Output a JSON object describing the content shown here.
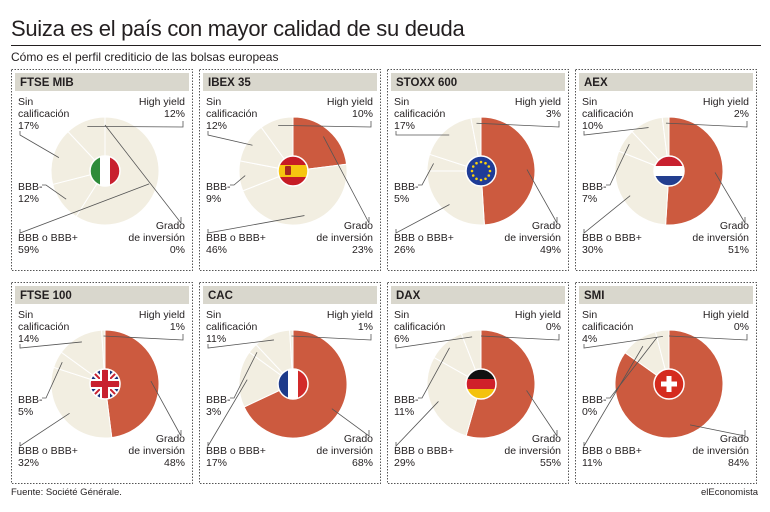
{
  "title": "Suiza es el país con mayor calidad de su deuda",
  "subtitle": "Cómo es el perfil crediticio de las bolsas europeas",
  "source": "Fuente: Société Générale.",
  "brand": "elEconomista",
  "colors": {
    "inv": "#cc5a3f",
    "other": "#f2eee1",
    "header": "#d9d7cd",
    "border": "#555555",
    "line": "#555555",
    "divider": "#ffffff"
  },
  "chart_data": [
    {
      "type": "pie",
      "title": "FTSE MIB",
      "flag": "italy-flag-icon",
      "labels": {
        "sin": [
          "Sin",
          "calificación"
        ],
        "hy": [
          "High yield"
        ],
        "bbbm": [
          "BBB-"
        ],
        "bbb": [
          "BBB o BBB+"
        ],
        "inv": [
          "Grado",
          "de inversión"
        ]
      },
      "values": {
        "inv": 0,
        "bbb": 59,
        "bbbm": 12,
        "sin": 17,
        "hy": 12
      },
      "display": {
        "inv": "0%",
        "bbb": "59%",
        "bbbm": "12%",
        "sin": "17%",
        "hy": "12%"
      }
    },
    {
      "type": "pie",
      "title": "IBEX 35",
      "flag": "spain-flag-icon",
      "labels": {
        "sin": [
          "Sin",
          "calificación"
        ],
        "hy": [
          "High yield"
        ],
        "bbbm": [
          "BBB-"
        ],
        "bbb": [
          "BBB o BBB+"
        ],
        "inv": [
          "Grado",
          "de inversión"
        ]
      },
      "values": {
        "inv": 23,
        "bbb": 46,
        "bbbm": 9,
        "sin": 12,
        "hy": 10
      },
      "display": {
        "inv": "23%",
        "bbb": "46%",
        "bbbm": "9%",
        "sin": "12%",
        "hy": "10%"
      }
    },
    {
      "type": "pie",
      "title": "STOXX 600",
      "flag": "eu-flag-icon",
      "labels": {
        "sin": [
          "Sin",
          "calificación"
        ],
        "hy": [
          "High yield"
        ],
        "bbbm": [
          "BBB-"
        ],
        "bbb": [
          "BBB o BBB+"
        ],
        "inv": [
          "Grado",
          "de inversión"
        ]
      },
      "values": {
        "inv": 49,
        "bbb": 26,
        "bbbm": 5,
        "sin": 17,
        "hy": 3
      },
      "display": {
        "inv": "49%",
        "bbb": "26%",
        "bbbm": "5%",
        "sin": "17%",
        "hy": "3%"
      }
    },
    {
      "type": "pie",
      "title": "AEX",
      "flag": "netherlands-flag-icon",
      "labels": {
        "sin": [
          "Sin",
          "calificación"
        ],
        "hy": [
          "High yield"
        ],
        "bbbm": [
          "BBB-"
        ],
        "bbb": [
          "BBB o BBB+"
        ],
        "inv": [
          "Grado",
          "de inversión"
        ]
      },
      "values": {
        "inv": 51,
        "bbb": 30,
        "bbbm": 7,
        "sin": 10,
        "hy": 2
      },
      "display": {
        "inv": "51%",
        "bbb": "30%",
        "bbbm": "7%",
        "sin": "10%",
        "hy": "2%"
      }
    },
    {
      "type": "pie",
      "title": "FTSE 100",
      "flag": "uk-flag-icon",
      "labels": {
        "sin": [
          "Sin",
          "calificación"
        ],
        "hy": [
          "High yield"
        ],
        "bbbm": [
          "BBB-"
        ],
        "bbb": [
          "BBB o BBB+"
        ],
        "inv": [
          "Grado",
          "de inversión"
        ]
      },
      "values": {
        "inv": 48,
        "bbb": 32,
        "bbbm": 5,
        "sin": 14,
        "hy": 1
      },
      "display": {
        "inv": "48%",
        "bbb": "32%",
        "bbbm": "5%",
        "sin": "14%",
        "hy": "1%"
      }
    },
    {
      "type": "pie",
      "title": "CAC",
      "flag": "france-flag-icon",
      "labels": {
        "sin": [
          "Sin",
          "calificación"
        ],
        "hy": [
          "High yield"
        ],
        "bbbm": [
          "BBB-"
        ],
        "bbb": [
          "BBB o BBB+"
        ],
        "inv": [
          "Grado",
          "de inversión"
        ]
      },
      "values": {
        "inv": 68,
        "bbb": 17,
        "bbbm": 3,
        "sin": 11,
        "hy": 1
      },
      "display": {
        "inv": "68%",
        "bbb": "17%",
        "bbbm": "3%",
        "sin": "11%",
        "hy": "1%"
      }
    },
    {
      "type": "pie",
      "title": "DAX",
      "flag": "germany-flag-icon",
      "labels": {
        "sin": [
          "Sin",
          "calificación"
        ],
        "hy": [
          "High yield"
        ],
        "bbbm": [
          "BBB-"
        ],
        "bbb": [
          "BBB o BBB+"
        ],
        "inv": [
          "Grado",
          "de inversión"
        ]
      },
      "values": {
        "inv": 55,
        "bbb": 29,
        "bbbm": 11,
        "sin": 6,
        "hy": 0
      },
      "display": {
        "inv": "55%",
        "bbb": "29%",
        "bbbm": "11%",
        "sin": "6%",
        "hy": "0%"
      }
    },
    {
      "type": "pie",
      "title": "SMI",
      "flag": "switzerland-flag-icon",
      "labels": {
        "sin": [
          "Sin",
          "calificación"
        ],
        "hy": [
          "High yield"
        ],
        "bbbm": [
          "BBB-"
        ],
        "bbb": [
          "BBB o BBB+"
        ],
        "inv": [
          "Grado",
          "de inversión"
        ]
      },
      "values": {
        "inv": 84,
        "bbb": 11,
        "bbbm": 0,
        "sin": 4,
        "hy": 0
      },
      "display": {
        "inv": "84%",
        "bbb": "11%",
        "bbbm": "0%",
        "sin": "4%",
        "hy": "0%"
      }
    }
  ]
}
